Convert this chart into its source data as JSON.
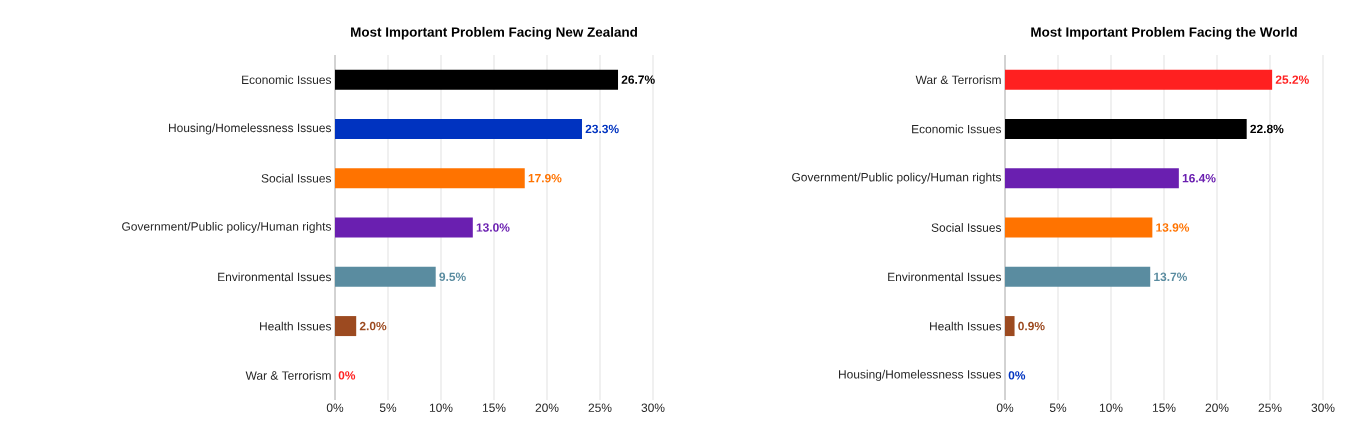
{
  "chart_data": [
    {
      "type": "bar",
      "orientation": "horizontal",
      "title": "Most Important Problem Facing New Zealand",
      "categories": [
        "Economic Issues",
        "Housing/Homelessness Issues",
        "Social Issues",
        "Government/Public policy/Human rights",
        "Environmental Issues",
        "Health Issues",
        "War & Terrorism"
      ],
      "values": [
        26.7,
        23.3,
        17.9,
        13.0,
        9.5,
        2.0,
        0
      ],
      "colors": [
        "#000000",
        "#0033c0",
        "#ff7300",
        "#6a1fb0",
        "#5a8ca0",
        "#9c4a20",
        "#ff2020"
      ],
      "value_labels": [
        "26.7%",
        "23.3%",
        "17.9%",
        "13.0%",
        "9.5%",
        "2.0%",
        "0%"
      ],
      "xlim": [
        0,
        30
      ],
      "xticks": [
        {
          "value": 0,
          "label": "0%"
        },
        {
          "value": 5,
          "label": "5%"
        },
        {
          "value": 10,
          "label": "10%"
        },
        {
          "value": 15,
          "label": "15%"
        },
        {
          "value": 20,
          "label": "20%"
        },
        {
          "value": 25,
          "label": "25%"
        },
        {
          "value": 30,
          "label": "30%"
        }
      ],
      "grid": "x"
    },
    {
      "type": "bar",
      "orientation": "horizontal",
      "title": "Most Important Problem Facing the World",
      "categories": [
        "War & Terrorism",
        "Economic Issues",
        "Government/Public policy/Human rights",
        "Social Issues",
        "Environmental Issues",
        "Health Issues",
        "Housing/Homelessness Issues"
      ],
      "values": [
        25.2,
        22.8,
        16.4,
        13.9,
        13.7,
        0.9,
        0
      ],
      "colors": [
        "#ff2020",
        "#000000",
        "#6a1fb0",
        "#ff7300",
        "#5a8ca0",
        "#9c4a20",
        "#0033c0"
      ],
      "value_labels": [
        "25.2%",
        "22.8%",
        "16.4%",
        "13.9%",
        "13.7%",
        "0.9%",
        "0%"
      ],
      "xlim": [
        0,
        30
      ],
      "xticks": [
        {
          "value": 0,
          "label": "0%"
        },
        {
          "value": 5,
          "label": "5%"
        },
        {
          "value": 10,
          "label": "10%"
        },
        {
          "value": 15,
          "label": "15%"
        },
        {
          "value": 20,
          "label": "20%"
        },
        {
          "value": 25,
          "label": "25%"
        },
        {
          "value": 30,
          "label": "30%"
        }
      ],
      "grid": "x"
    }
  ]
}
